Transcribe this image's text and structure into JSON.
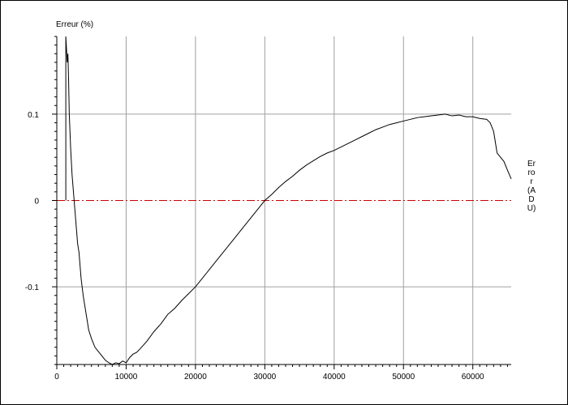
{
  "chart_data": {
    "type": "line",
    "ylabel": "Erreur (%)",
    "y2label": "Error (ADU)",
    "xlim": [
      0,
      65535
    ],
    "ylim": [
      -0.19,
      0.19
    ],
    "xticks": [
      0,
      10000,
      20000,
      30000,
      40000,
      50000,
      60000
    ],
    "xtick_labels": [
      "0",
      "10000",
      "20000",
      "30000",
      "40000",
      "50000",
      "60000"
    ],
    "yticks": [
      0.1,
      0,
      -0.1
    ],
    "ytick_labels": [
      "0.1",
      "0",
      "-0.1"
    ],
    "grid": true,
    "reference_line": {
      "y": 0,
      "color": "#cc0000",
      "style": "dash-dot"
    },
    "series": [
      {
        "color": "#000000",
        "x": [
          1300,
          1300,
          1500,
          1600,
          1700,
          1800,
          2000,
          2200,
          2500,
          2800,
          3000,
          3200,
          3500,
          3800,
          4200,
          4600,
          5000,
          5500,
          6000,
          6500,
          7000,
          7500,
          8000,
          8500,
          9000,
          9500,
          10000,
          10500,
          11000,
          11500,
          12000,
          13000,
          14000,
          15000,
          16000,
          17000,
          18000,
          19000,
          20000,
          21000,
          22000,
          23000,
          24000,
          25000,
          26000,
          27000,
          28000,
          29000,
          30000,
          31000,
          32000,
          33000,
          34000,
          35000,
          36000,
          37000,
          38000,
          39000,
          40000,
          41000,
          42000,
          43000,
          44000,
          45000,
          46000,
          47000,
          48000,
          49000,
          50000,
          51000,
          52000,
          53000,
          54000,
          55000,
          56000,
          57000,
          58000,
          59000,
          60000,
          61000,
          62000,
          62500,
          63000,
          63500,
          64000,
          64500,
          65000,
          65535
        ],
        "y": [
          0.0,
          0.19,
          0.16,
          0.17,
          0.14,
          0.1,
          0.06,
          0.03,
          0.0,
          -0.03,
          -0.05,
          -0.06,
          -0.09,
          -0.11,
          -0.13,
          -0.15,
          -0.16,
          -0.17,
          -0.175,
          -0.18,
          -0.185,
          -0.188,
          -0.19,
          -0.188,
          -0.189,
          -0.186,
          -0.188,
          -0.182,
          -0.178,
          -0.176,
          -0.172,
          -0.163,
          -0.152,
          -0.143,
          -0.132,
          -0.125,
          -0.116,
          -0.108,
          -0.1,
          -0.09,
          -0.08,
          -0.07,
          -0.06,
          -0.05,
          -0.04,
          -0.03,
          -0.02,
          -0.01,
          0.0,
          0.007,
          0.015,
          0.022,
          0.028,
          0.035,
          0.041,
          0.046,
          0.051,
          0.055,
          0.058,
          0.062,
          0.066,
          0.07,
          0.074,
          0.078,
          0.082,
          0.085,
          0.088,
          0.09,
          0.092,
          0.094,
          0.096,
          0.097,
          0.098,
          0.099,
          0.1,
          0.098,
          0.099,
          0.097,
          0.097,
          0.095,
          0.094,
          0.09,
          0.08,
          0.055,
          0.05,
          0.045,
          0.035,
          0.025
        ]
      }
    ]
  }
}
